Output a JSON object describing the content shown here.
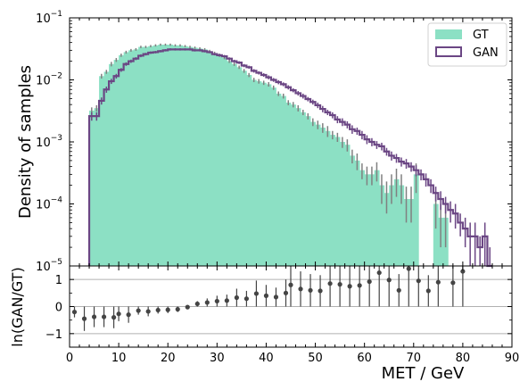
{
  "colors": {
    "gt_fill": "#8ce0c4",
    "gan_line": "#6b4684",
    "errorbar": "#808080",
    "ratio_point": "#444444",
    "ratio_grid": "#b0b0b0",
    "axes": "#000000"
  },
  "chart_data": [
    {
      "type": "bar",
      "panel": "top",
      "ylabel": "Density of samples",
      "yscale": "log",
      "ylim": [
        1e-05,
        0.1
      ],
      "xlim": [
        0,
        90
      ],
      "y_ticks": [
        {
          "value": 1e-05,
          "base": "10",
          "exp": "−5"
        },
        {
          "value": 0.0001,
          "base": "10",
          "exp": "−4"
        },
        {
          "value": 0.001,
          "base": "10",
          "exp": "−3"
        },
        {
          "value": 0.01,
          "base": "10",
          "exp": "−2"
        },
        {
          "value": 0.1,
          "base": "10",
          "exp": "−1"
        }
      ],
      "legend": {
        "position": "top-right",
        "entries": [
          "GT",
          "GAN"
        ]
      },
      "bin_width": 1,
      "bin_start": 4,
      "series": [
        {
          "name": "GT",
          "style": "filled-hist",
          "values": [
            0.0032,
            0.0035,
            0.0115,
            0.0135,
            0.018,
            0.021,
            0.025,
            0.028,
            0.03,
            0.031,
            0.034,
            0.034,
            0.035,
            0.036,
            0.037,
            0.037,
            0.037,
            0.036,
            0.036,
            0.035,
            0.034,
            0.033,
            0.032,
            0.031,
            0.029,
            0.027,
            0.025,
            0.023,
            0.02,
            0.018,
            0.016,
            0.014,
            0.012,
            0.01,
            0.0095,
            0.009,
            0.0085,
            0.0075,
            0.006,
            0.0055,
            0.0043,
            0.004,
            0.0035,
            0.003,
            0.0026,
            0.0021,
            0.0019,
            0.0017,
            0.0015,
            0.0013,
            0.0012,
            0.001,
            0.0009,
            0.0006,
            0.0005,
            0.00035,
            0.0003,
            0.0003,
            0.00035,
            0.0002,
            0.00015,
            0.0002,
            0.00025,
            0.0002,
            0.00012,
            0.00012,
            0.0003,
            null,
            null,
            null,
            0.0001,
            6e-05,
            6e-05,
            null,
            null,
            null,
            null,
            null,
            null,
            null,
            null,
            null
          ],
          "errors": [
            0.0004,
            0.0004,
            0.001,
            0.001,
            0.0015,
            0.0015,
            0.0015,
            0.0015,
            0.0015,
            0.0015,
            0.0015,
            0.0015,
            0.0015,
            0.0015,
            0.0015,
            0.0015,
            0.0015,
            0.0015,
            0.0015,
            0.0015,
            0.0015,
            0.0015,
            0.0015,
            0.0015,
            0.0015,
            0.0015,
            0.0015,
            0.0015,
            0.0012,
            0.0012,
            0.001,
            0.001,
            0.0009,
            0.0008,
            0.0008,
            0.0007,
            0.0007,
            0.0006,
            0.0005,
            0.0005,
            0.0004,
            0.0004,
            0.0004,
            0.0003,
            0.0003,
            0.0003,
            0.0003,
            0.0003,
            0.0003,
            0.0002,
            0.0002,
            0.0002,
            0.0002,
            0.00015,
            0.00015,
            0.0001,
            0.0001,
            0.0001,
            0.00012,
            0.0001,
            8e-05,
            0.0001,
            0.00012,
            0.0001,
            7e-05,
            7e-05,
            0.00015,
            null,
            null,
            null,
            6e-05,
            4e-05,
            4e-05,
            null,
            null,
            null,
            null,
            null,
            null,
            null,
            null,
            null
          ]
        },
        {
          "name": "GAN",
          "style": "step",
          "values": [
            0.0026,
            0.0026,
            0.0046,
            0.007,
            0.0095,
            0.0115,
            0.0145,
            0.018,
            0.02,
            0.022,
            0.0245,
            0.026,
            0.0275,
            0.028,
            0.029,
            0.03,
            0.031,
            0.031,
            0.031,
            0.031,
            0.031,
            0.03,
            0.03,
            0.029,
            0.028,
            0.026,
            0.025,
            0.024,
            0.022,
            0.02,
            0.019,
            0.017,
            0.016,
            0.014,
            0.013,
            0.012,
            0.011,
            0.01,
            0.0092,
            0.0085,
            0.0076,
            0.0068,
            0.0061,
            0.0055,
            0.0049,
            0.0044,
            0.0039,
            0.0034,
            0.003,
            0.0027,
            0.0023,
            0.0021,
            0.0019,
            0.0016,
            0.0015,
            0.0013,
            0.0011,
            0.001,
            0.0009,
            0.00085,
            0.0007,
            0.0006,
            0.00055,
            0.00048,
            0.00045,
            0.0004,
            0.00035,
            0.0003,
            0.00025,
            0.0002,
            0.00015,
            0.00012,
            0.0001,
            8e-05,
            7e-05,
            5e-05,
            4e-05,
            3e-05,
            3e-05,
            2e-05,
            3e-05,
            1e-05
          ],
          "errors": [
            0.0004,
            0.0004,
            0.0006,
            0.0008,
            0.0009,
            0.001,
            0.001,
            0.0012,
            0.0012,
            0.0012,
            0.0013,
            0.0013,
            0.0013,
            0.0013,
            0.0013,
            0.0013,
            0.0013,
            0.0013,
            0.0013,
            0.0013,
            0.0013,
            0.0013,
            0.0013,
            0.0013,
            0.0012,
            0.0012,
            0.0012,
            0.0012,
            0.0011,
            0.0011,
            0.001,
            0.001,
            0.0009,
            0.0009,
            0.0008,
            0.0008,
            0.0008,
            0.0007,
            0.0007,
            0.0006,
            0.0006,
            0.0005,
            0.0005,
            0.0005,
            0.0004,
            0.0004,
            0.0004,
            0.0004,
            0.0003,
            0.0003,
            0.0003,
            0.0003,
            0.00025,
            0.00025,
            0.0002,
            0.0002,
            0.00018,
            0.00015,
            0.00013,
            0.00012,
            0.0001,
            0.0001,
            9e-05,
            8e-05,
            8e-05,
            7e-05,
            7e-05,
            6e-05,
            6e-05,
            5e-05,
            4e-05,
            4e-05,
            3e-05,
            3e-05,
            3e-05,
            2e-05,
            2e-05,
            2e-05,
            2e-05,
            1e-05,
            2e-05,
            1e-05
          ]
        }
      ]
    },
    {
      "type": "scatter",
      "panel": "bottom",
      "ylabel": "ln(GAN/GT)",
      "xlabel": "MET / GeV",
      "xlim": [
        0,
        90
      ],
      "ylim": [
        -1.5,
        1.5
      ],
      "x_ticks": [
        0,
        10,
        20,
        30,
        40,
        50,
        60,
        70,
        80,
        90
      ],
      "y_ticks": [
        {
          "value": 1,
          "label": "1"
        },
        {
          "value": 0,
          "label": "0"
        },
        {
          "value": -1,
          "label": "−1"
        }
      ],
      "grid_y": [
        -1,
        0,
        1
      ],
      "series": [
        {
          "name": "ln(GAN/GT)",
          "x": [
            1,
            3,
            5,
            7,
            9,
            10,
            12,
            14,
            16,
            18,
            20,
            22,
            24,
            26,
            28,
            30,
            32,
            34,
            36,
            38,
            40,
            42,
            44,
            45,
            47,
            49,
            51,
            53,
            55,
            57,
            59,
            61,
            63,
            65,
            67,
            69,
            71,
            73,
            75,
            78,
            80
          ],
          "y": [
            -0.2,
            -0.45,
            -0.38,
            -0.38,
            -0.4,
            -0.27,
            -0.3,
            -0.15,
            -0.18,
            -0.13,
            -0.12,
            -0.1,
            -0.02,
            0.1,
            0.15,
            0.2,
            0.22,
            0.33,
            0.29,
            0.48,
            0.4,
            0.35,
            0.5,
            0.8,
            0.65,
            0.6,
            0.58,
            0.85,
            0.82,
            0.75,
            0.78,
            0.92,
            1.25,
            0.98,
            0.6,
            1.4,
            0.95,
            0.58,
            0.9,
            0.88,
            1.3
          ],
          "errors": [
            0.2,
            0.45,
            0.38,
            0.38,
            0.4,
            0.27,
            0.3,
            0.15,
            0.18,
            0.13,
            0.12,
            0.1,
            0.02,
            0.1,
            0.15,
            0.2,
            0.22,
            0.33,
            0.29,
            0.48,
            0.4,
            0.35,
            0.5,
            0.8,
            0.65,
            0.6,
            0.58,
            0.85,
            0.82,
            0.75,
            0.78,
            0.92,
            1.25,
            0.98,
            0.6,
            1.4,
            0.95,
            0.58,
            0.9,
            0.88,
            1.3
          ]
        }
      ]
    }
  ]
}
